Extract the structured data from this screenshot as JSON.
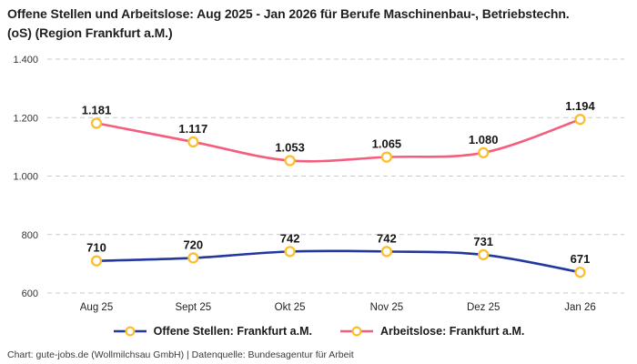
{
  "title": "Offene Stellen und Arbeitslose: Aug 2025 - Jan 2026 für Berufe Maschinenbau-, Betriebstechn.(oS) (Region Frankfurt a.M.)",
  "footer": "Chart: gute-jobs.de (Wollmilchsau GmbH) | Datenquelle: Bundesagentur für Arbeit",
  "chart_data": {
    "type": "line",
    "categories": [
      "Aug 25",
      "Sept 25",
      "Okt 25",
      "Nov 25",
      "Dez 25",
      "Jan 26"
    ],
    "series": [
      {
        "name": "Offene Stellen: Frankfurt a.M.",
        "values": [
          710,
          720,
          742,
          742,
          731,
          671
        ],
        "labels": [
          "710",
          "720",
          "742",
          "742",
          "731",
          "671"
        ],
        "color": "#22389f"
      },
      {
        "name": "Arbeitslose: Frankfurt a.M.",
        "values": [
          1181,
          1117,
          1053,
          1065,
          1080,
          1194
        ],
        "labels": [
          "1.181",
          "1.117",
          "1.053",
          "1.065",
          "1.080",
          "1.194"
        ],
        "color": "#f45d7c"
      }
    ],
    "marker": {
      "fill": "#ffffff",
      "stroke": "#fbbe2e"
    },
    "y_axis": {
      "min": 600,
      "max": 1400,
      "ticks": [
        600,
        800,
        1000,
        1200,
        1400
      ],
      "tick_labels": [
        "600",
        "800",
        "1.000",
        "1.200",
        "1.400"
      ]
    },
    "ylim": [
      600,
      1400
    ],
    "grid": "dashed-horizontal",
    "grid_color": "#c9c9c9",
    "legend_position": "bottom",
    "label_color": "#161616",
    "axis_text_color": "#333333"
  }
}
